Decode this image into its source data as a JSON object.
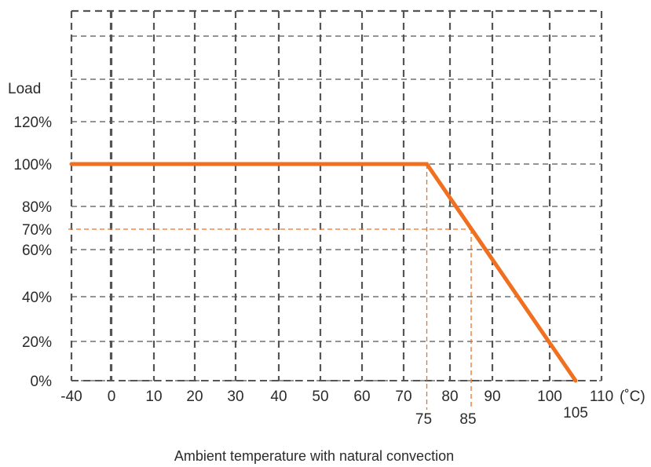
{
  "chart_data": {
    "type": "line",
    "ylabel": "Load",
    "xlabel": "Ambient temperature with natural convection",
    "x_unit": "(˚C)",
    "x_ticks": [
      {
        "value": -40,
        "label": "-40"
      },
      {
        "value": 0,
        "label": "0"
      },
      {
        "value": 10,
        "label": "10"
      },
      {
        "value": 20,
        "label": "20"
      },
      {
        "value": 30,
        "label": "30"
      },
      {
        "value": 40,
        "label": "40"
      },
      {
        "value": 50,
        "label": "50"
      },
      {
        "value": 60,
        "label": "60"
      },
      {
        "value": 70,
        "label": "70"
      },
      {
        "value": 80,
        "label": "80"
      },
      {
        "value": 90,
        "label": "90"
      },
      {
        "value": 100,
        "label": "100"
      },
      {
        "value": 110,
        "label": "110"
      }
    ],
    "y_ticks": [
      {
        "value": 0,
        "label": "0%"
      },
      {
        "value": 20,
        "label": "20%"
      },
      {
        "value": 40,
        "label": "40%"
      },
      {
        "value": 60,
        "label": "60%"
      },
      {
        "value": 70,
        "label": "70%"
      },
      {
        "value": 80,
        "label": "80%"
      },
      {
        "value": 100,
        "label": "100%"
      },
      {
        "value": 120,
        "label": "120%"
      }
    ],
    "vertical_gridlines": [
      -40,
      -30,
      0,
      10,
      20,
      30,
      40,
      50,
      60,
      70,
      80,
      90,
      100,
      110
    ],
    "horizontal_gridlines": [
      0,
      20,
      40,
      60,
      80,
      100,
      120,
      140,
      160
    ],
    "xlim": [
      -40,
      110
    ],
    "ylim": [
      0,
      160
    ],
    "series": [
      {
        "x": [
          -40,
          75,
          105
        ],
        "y": [
          100,
          100,
          0
        ],
        "color": "#f07020"
      }
    ],
    "markers": [
      {
        "x": 75,
        "y": 100,
        "label": "75"
      },
      {
        "x": 85,
        "y": 70,
        "label": "85"
      }
    ],
    "extra_x_labels": [
      {
        "value": 105,
        "label": "105"
      }
    ],
    "grid": true,
    "grid_color": "#555555",
    "marker_color": "#f07020"
  }
}
